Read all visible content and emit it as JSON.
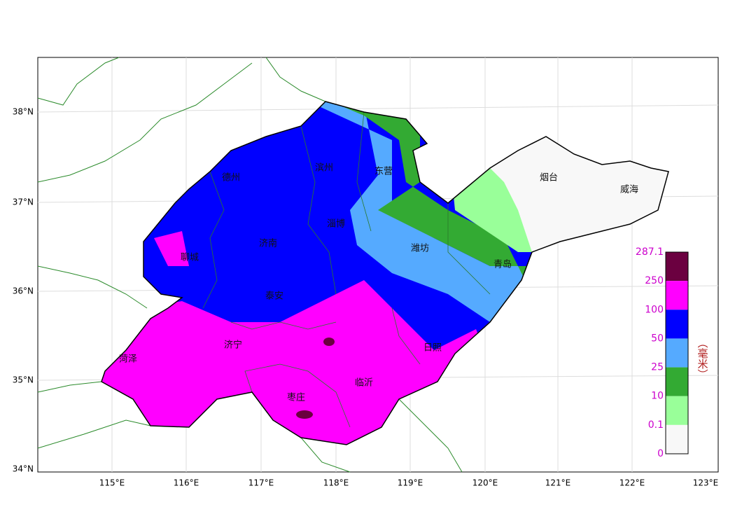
{
  "map": {
    "lat_ticks": [
      "38°N",
      "37°N",
      "36°N",
      "35°N",
      "34°N"
    ],
    "lon_ticks": [
      "115°E",
      "116°E",
      "117°E",
      "118°E",
      "119°E",
      "120°E",
      "121°E",
      "122°E",
      "123°E"
    ],
    "cities": [
      "德州",
      "滨州",
      "东营",
      "烟台",
      "威海",
      "淄博",
      "济南",
      "潍坊",
      "聊城",
      "青岛",
      "泰安",
      "济宁",
      "日照",
      "菏泽",
      "临沂",
      "枣庄"
    ],
    "legend": {
      "labels": [
        "287.1",
        "250",
        "100",
        "50",
        "25",
        "10",
        "0.1",
        "0"
      ],
      "colors": [
        "#6b0040",
        "#ff00ff",
        "#0000ff",
        "#55aaff",
        "#33aa33",
        "#99ff99",
        "#f8f8f8"
      ],
      "unit": "（毫米）"
    }
  }
}
